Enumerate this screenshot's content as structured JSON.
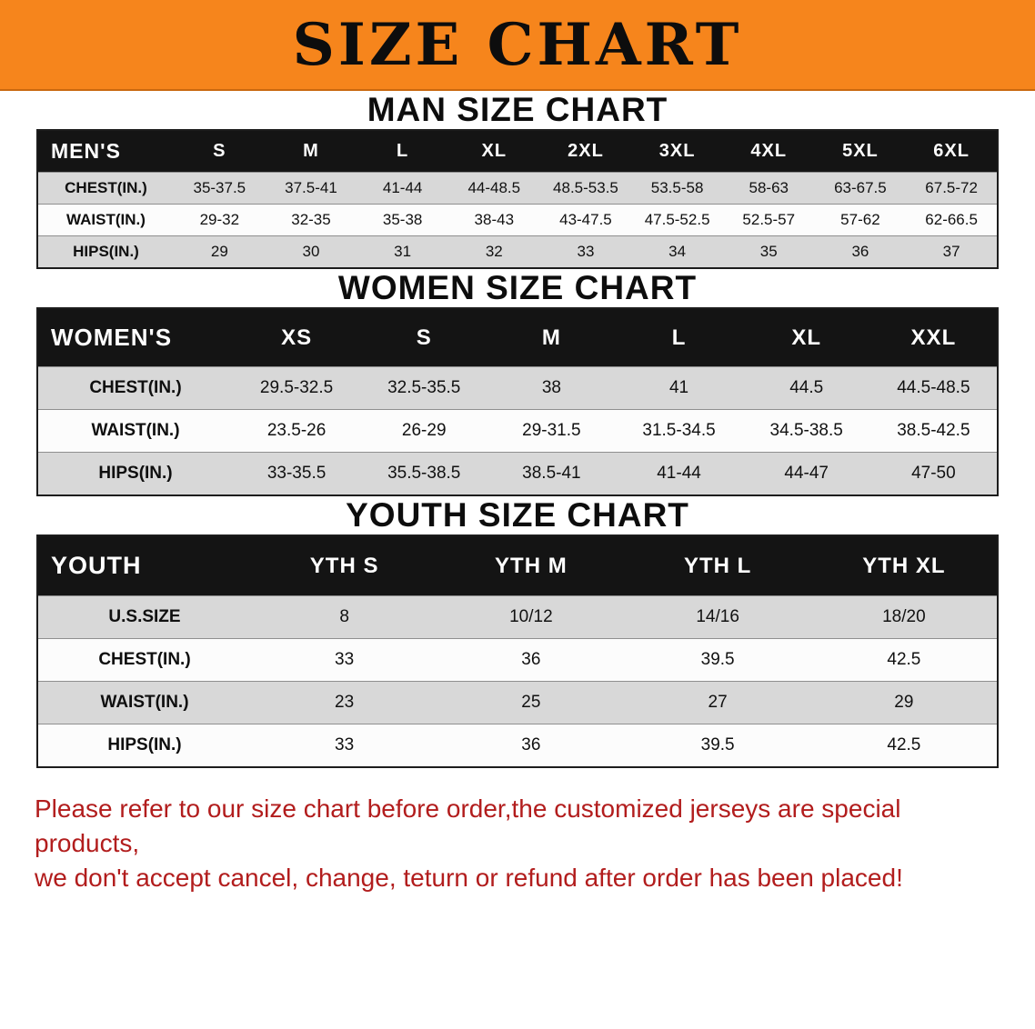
{
  "banner": {
    "title": "SIZE CHART",
    "bg_color": "#f6851c",
    "text_color": "#0d0d0d"
  },
  "chart_data": [
    {
      "type": "table",
      "title": "MAN SIZE CHART",
      "corner_label": "MEN'S",
      "columns": [
        "S",
        "M",
        "L",
        "XL",
        "2XL",
        "3XL",
        "4XL",
        "5XL",
        "6XL"
      ],
      "rows": [
        {
          "label": "CHEST(IN.)",
          "values": [
            "35-37.5",
            "37.5-41",
            "41-44",
            "44-48.5",
            "48.5-53.5",
            "53.5-58",
            "58-63",
            "63-67.5",
            "67.5-72"
          ]
        },
        {
          "label": "WAIST(IN.)",
          "values": [
            "29-32",
            "32-35",
            "35-38",
            "38-43",
            "43-47.5",
            "47.5-52.5",
            "52.5-57",
            "57-62",
            "62-66.5"
          ]
        },
        {
          "label": "HIPS(IN.)",
          "values": [
            "29",
            "30",
            "31",
            "32",
            "33",
            "34",
            "35",
            "36",
            "37"
          ]
        }
      ]
    },
    {
      "type": "table",
      "title": "WOMEN SIZE CHART",
      "corner_label": "WOMEN'S",
      "columns": [
        "XS",
        "S",
        "M",
        "L",
        "XL",
        "XXL"
      ],
      "rows": [
        {
          "label": "CHEST(IN.)",
          "values": [
            "29.5-32.5",
            "32.5-35.5",
            "38",
            "41",
            "44.5",
            "44.5-48.5"
          ]
        },
        {
          "label": "WAIST(IN.)",
          "values": [
            "23.5-26",
            "26-29",
            "29-31.5",
            "31.5-34.5",
            "34.5-38.5",
            "38.5-42.5"
          ]
        },
        {
          "label": "HIPS(IN.)",
          "values": [
            "33-35.5",
            "35.5-38.5",
            "38.5-41",
            "41-44",
            "44-47",
            "47-50"
          ]
        }
      ]
    },
    {
      "type": "table",
      "title": "YOUTH SIZE CHART",
      "corner_label": "YOUTH",
      "columns": [
        "YTH S",
        "YTH M",
        "YTH L",
        "YTH XL"
      ],
      "rows": [
        {
          "label": "U.S.SIZE",
          "values": [
            "8",
            "10/12",
            "14/16",
            "18/20"
          ]
        },
        {
          "label": "CHEST(IN.)",
          "values": [
            "33",
            "36",
            "39.5",
            "42.5"
          ]
        },
        {
          "label": "WAIST(IN.)",
          "values": [
            "23",
            "25",
            "27",
            "29"
          ]
        },
        {
          "label": "HIPS(IN.)",
          "values": [
            "33",
            "36",
            "39.5",
            "42.5"
          ]
        }
      ]
    }
  ],
  "disclaimer": {
    "text_color": "#b21d1d",
    "lines": [
      "Please refer to our size chart before order,the customized jerseys are special products,",
      "we don't accept cancel, change, teturn or refund after order has been placed!"
    ]
  }
}
